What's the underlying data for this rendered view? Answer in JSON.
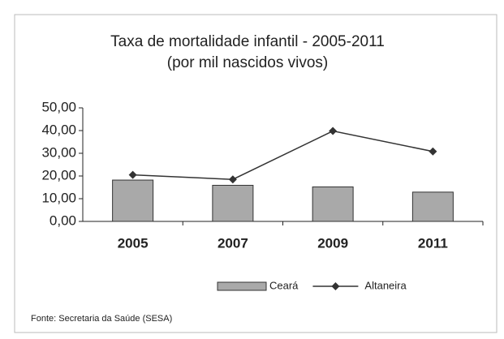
{
  "chart_data": {
    "type": "bar",
    "title": "Taxa de mortalidade infantil - 2005-2011",
    "subtitle": "(por mil nascidos vivos)",
    "categories": [
      "2005",
      "2007",
      "2009",
      "2011"
    ],
    "series": [
      {
        "name": "Ceará",
        "type": "bar",
        "color": "#a9a9a9",
        "values": [
          18.2,
          15.9,
          15.2,
          12.9
        ]
      },
      {
        "name": "Altaneira",
        "type": "line",
        "color": "#333333",
        "values": [
          20.5,
          18.5,
          39.8,
          30.8
        ]
      }
    ],
    "ylim": [
      0,
      50
    ],
    "yticks": [
      {
        "value": 0,
        "label": "0,00"
      },
      {
        "value": 10,
        "label": "10,00"
      },
      {
        "value": 20,
        "label": "20,00"
      },
      {
        "value": 30,
        "label": "30,00"
      },
      {
        "value": 40,
        "label": "40,00"
      },
      {
        "value": 50,
        "label": "50,00"
      }
    ],
    "source": "Fonte: Secretaria da Saúde (SESA)"
  }
}
